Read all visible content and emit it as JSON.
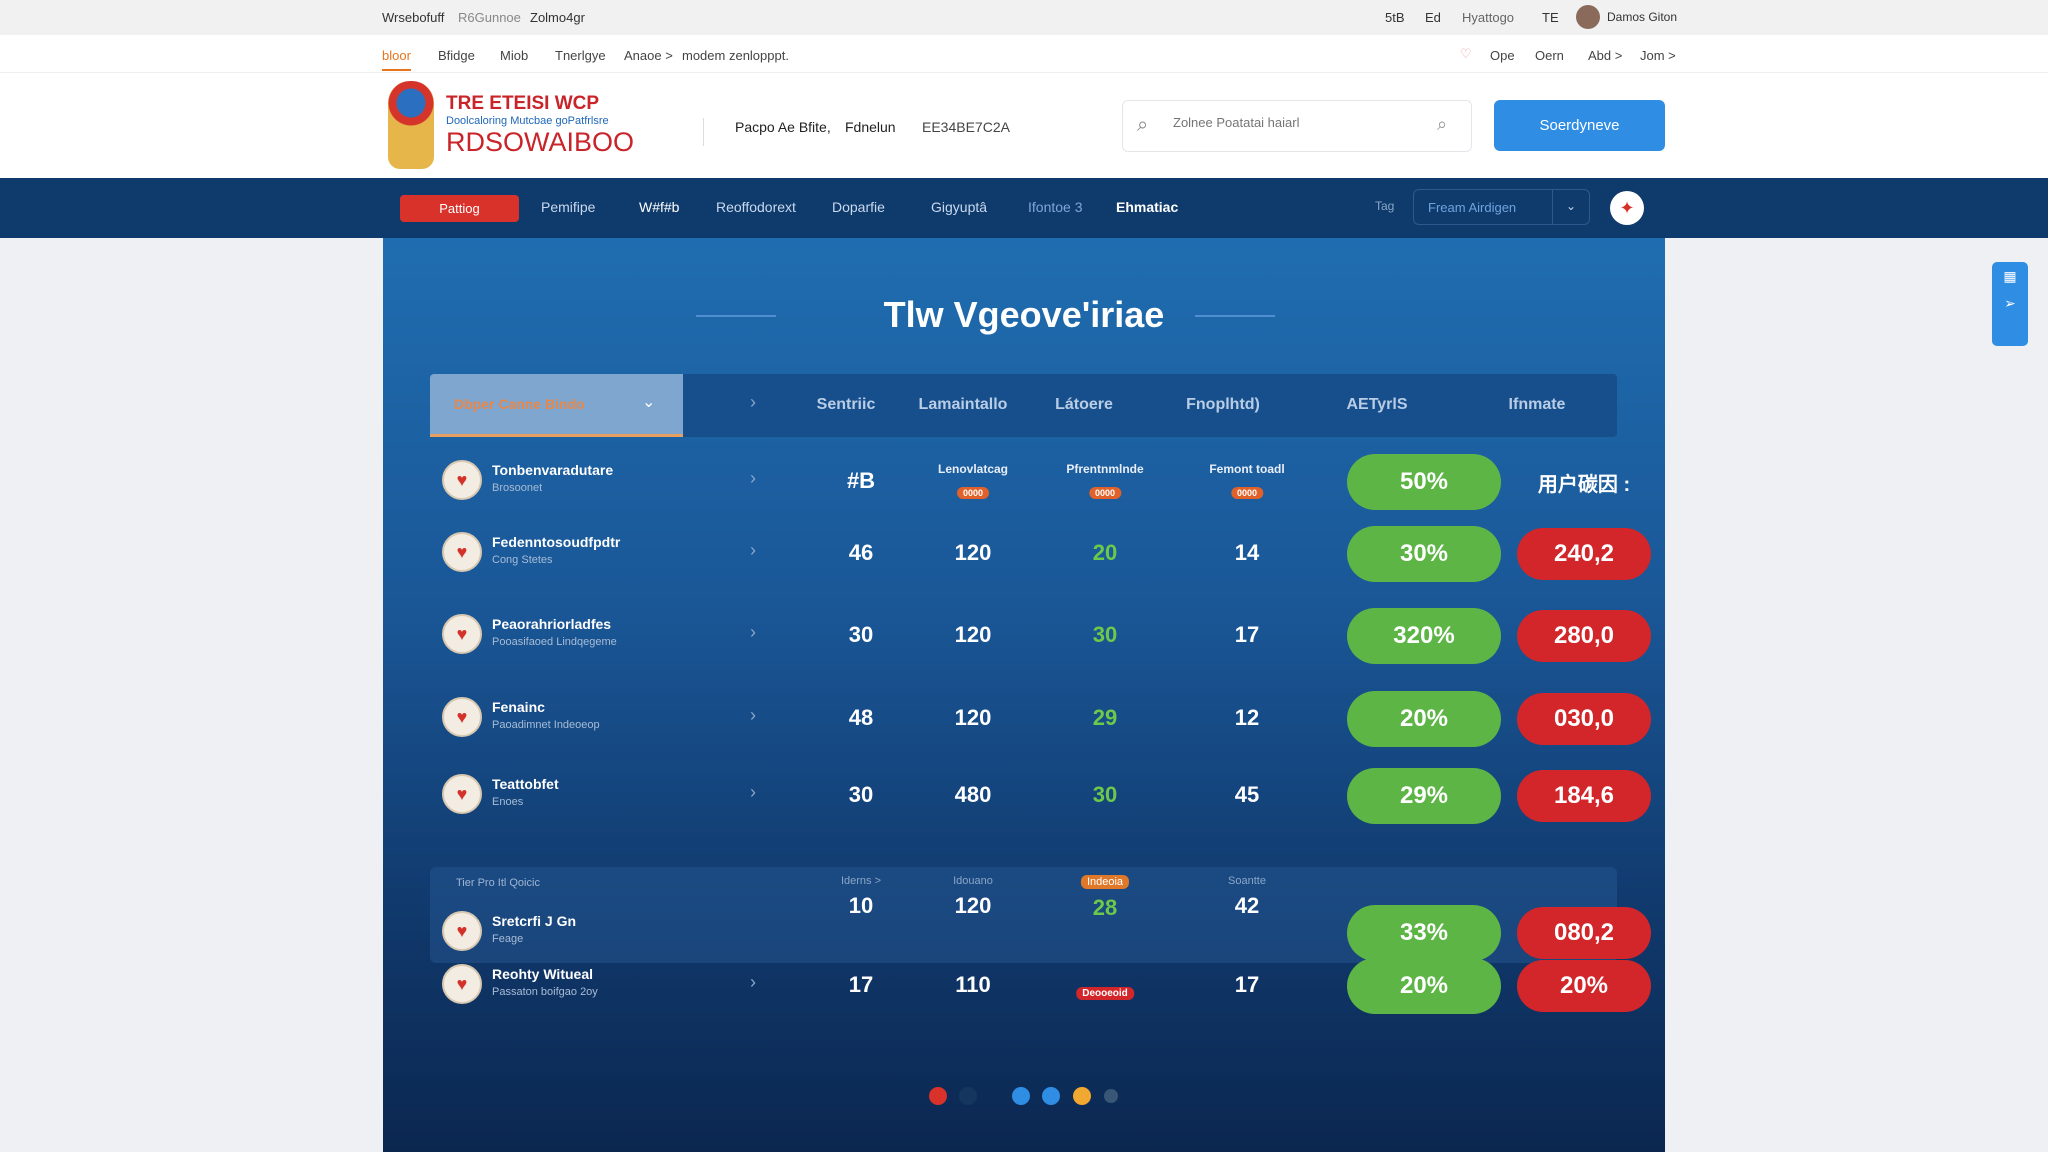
{
  "topbar": {
    "left": [
      "Wrsebofuff",
      "R6Gunnoe",
      "Zolmo4gr"
    ],
    "right": [
      "5tB",
      "Ed",
      "Hyattogo",
      "TE"
    ],
    "user": "Damos Giton"
  },
  "subnav": {
    "left": [
      "bloor",
      "Bfidge",
      "Miob",
      "Tnerlgye",
      "Anaoe >",
      "modem zenlopppt."
    ],
    "right": [
      "Ope",
      "Oern",
      "Abd >",
      "Jom >"
    ]
  },
  "header": {
    "logo_line1": "TRE ETEISI WCP",
    "logo_line2": "Doolcaloring Mutcbae goPatfrlsre",
    "logo_line3": "RDSOWAIBOO",
    "info": [
      "Pacpo Ae Bfite,",
      "Fdnelun",
      "EE34BE7C2A"
    ],
    "search_placeholder": "Zolnee Poatatai haiarl",
    "button": "Soerdyneve"
  },
  "mainnav": {
    "items": [
      "Pattiog",
      "Pemifipe",
      "W#f#b",
      "Reoffodorext",
      "Doparfie",
      "Gigyuptâ",
      "Ifontoe 3",
      "Ehmatiac"
    ],
    "right_label": "Tag",
    "dropdown": "Fream Airdigen"
  },
  "panel": {
    "title": "Tlw Vgeove'iriae",
    "header": {
      "dropdown": "Dbper Canne Bindo",
      "cols": [
        "Sentriic",
        "Lamaintallo",
        "Látoere",
        "Fnoplhtd)",
        "AETyrlS",
        "Ifnmate"
      ]
    },
    "rows": [
      {
        "name": "Tonbenvaradutare",
        "sub": "Brosoonet",
        "c1": "#B",
        "c2": "Lenovlatcag",
        "c2b": "0000",
        "c3": "Pfrentnmlnde",
        "c3b": "0000",
        "c4": "Femont toadl",
        "c4b": "0000",
        "pct": "50%",
        "val": "用户碳因 :",
        "valStyle": "text"
      },
      {
        "name": "Fedenntosoudfpdtr",
        "sub": "Cong Stetes",
        "c1": "46",
        "c2": "120",
        "c3": "20",
        "c4": "14",
        "pct": "30%",
        "val": "240,2"
      },
      {
        "name": "Peaorahriorladfes",
        "sub": "Pooasifaoed Lindqegeme",
        "c1": "30",
        "c2": "120",
        "c3": "30",
        "c4": "17",
        "pct": "320%",
        "val": "280,0"
      },
      {
        "name": "Fenainc",
        "sub": "Paoadimnet Indeoeop",
        "c1": "48",
        "c2": "120",
        "c3": "29",
        "c4": "12",
        "pct": "20%",
        "val": "030,0"
      },
      {
        "name": "Teattobfet",
        "sub": "Enoes",
        "c1": "30",
        "c2": "480",
        "c3": "30",
        "c4": "45",
        "pct": "29%",
        "val": "184,6"
      },
      {
        "group": "Tier Pro Itl Qoicic",
        "name": "Sretcrfi J Gn",
        "sub": "Feage",
        "c1": "10",
        "c1l": "Iderns >",
        "c2": "120",
        "c2l": "Idouano",
        "c3": "28",
        "c3l": "Indeoia",
        "c4": "42",
        "c4l": "Soantte",
        "pct": "33%",
        "val": "080,2"
      },
      {
        "name": "Reohty Witueal",
        "sub": "Passaton boifgao 2oy",
        "c1": "17",
        "c2": "110",
        "c3": "",
        "c3b": "Deooeoid",
        "c4": "17",
        "pct": "20%",
        "val": "20%"
      }
    ]
  },
  "colors": {
    "accent_red": "#d2262a",
    "accent_green": "#5cb544",
    "nav": "#0f3b6c",
    "button": "#2f8de4"
  }
}
